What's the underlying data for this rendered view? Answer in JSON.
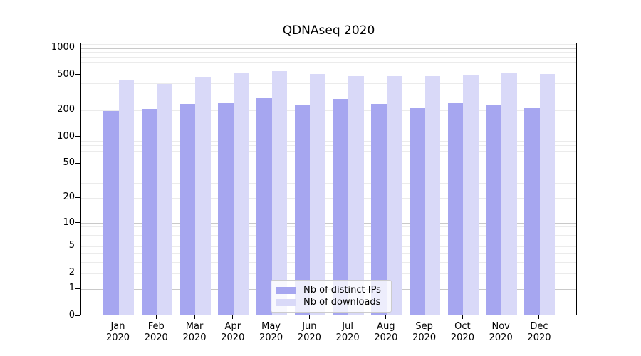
{
  "chart_data": {
    "type": "bar",
    "title": "QDNAseq 2020",
    "categories": [
      "Jan",
      "Feb",
      "Mar",
      "Apr",
      "May",
      "Jun",
      "Jul",
      "Aug",
      "Sep",
      "Oct",
      "Nov",
      "Dec"
    ],
    "category_year": "2020",
    "series": [
      {
        "name": "Nb of distinct IPs",
        "color": "#a6a6f0",
        "values": [
          192,
          200,
          230,
          240,
          264,
          225,
          260,
          228,
          209,
          232,
          225,
          205
        ]
      },
      {
        "name": "Nb of downloads",
        "color": "#d9d9f8",
        "values": [
          433,
          385,
          466,
          503,
          536,
          494,
          474,
          468,
          470,
          476,
          507,
          500
        ]
      }
    ],
    "xlabel": "",
    "ylabel": "",
    "yscale": "log1p",
    "yticks": [
      0,
      1,
      2,
      5,
      10,
      20,
      50,
      100,
      200,
      500,
      1000
    ],
    "minor_gridlines": [
      2,
      3,
      4,
      5,
      6,
      7,
      8,
      9,
      20,
      30,
      40,
      50,
      60,
      70,
      80,
      90,
      200,
      300,
      400,
      500,
      600,
      700,
      800,
      900,
      1100
    ],
    "major_gridlines": [
      1,
      10,
      100,
      1000
    ],
    "ylim": [
      0,
      1140
    ],
    "grid": true,
    "legend_position": "lower center",
    "colors": {
      "major_grid": "#c9c9c9",
      "minor_grid": "#ebebeb",
      "frame": "#000000",
      "text": "#000000",
      "legend_border": "#cccccc"
    }
  }
}
